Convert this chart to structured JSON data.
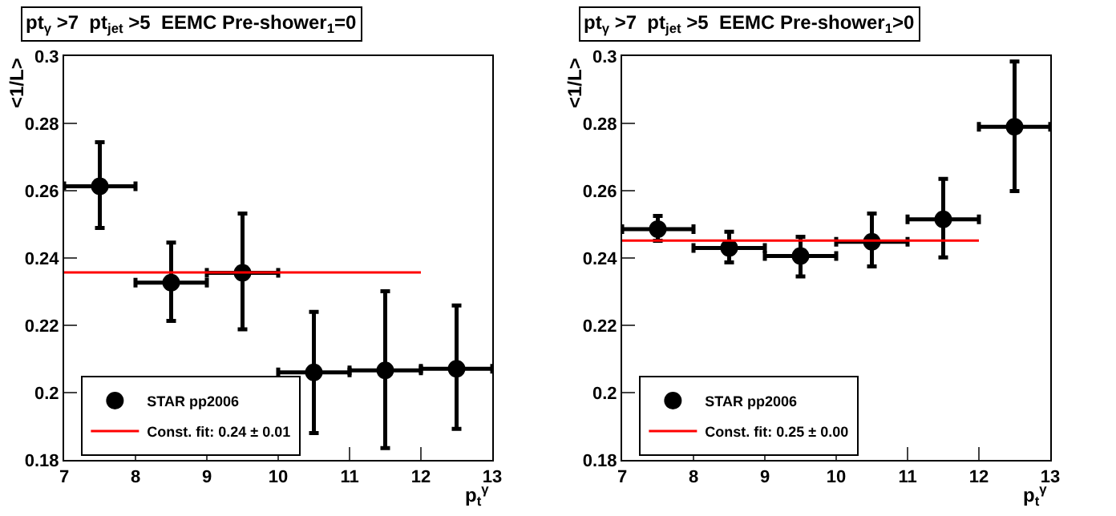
{
  "chart_data": [
    {
      "type": "scatter",
      "title": "pt$_{γ}$ >7  pt$_{jet}$ >5  EEMC Pre-shower$_{1}$=0",
      "xlabel": "p$_{t}$$^{γ}$",
      "ylabel": "<1/L>",
      "xlim": [
        7,
        13
      ],
      "xticks": [
        7,
        8,
        9,
        10,
        11,
        12,
        13
      ],
      "ylim": [
        0.18,
        0.3
      ],
      "yticks": [
        0.18,
        0.2,
        0.22,
        0.24,
        0.26,
        0.28,
        0.3
      ],
      "grid": false,
      "legend": "bottom left",
      "series": [
        {
          "name": "STAR pp2006",
          "type": "scatter",
          "marker": "circle",
          "color": "#000000",
          "x": [
            7.5,
            8.5,
            9.5,
            10.5,
            11.5,
            12.5
          ],
          "values": [
            0.2613,
            0.2327,
            0.2356,
            0.206,
            0.2066,
            0.2071
          ],
          "errors": [
            [
              0.2489,
              0.2744
            ],
            [
              0.2213,
              0.2446
            ],
            [
              0.2188,
              0.2532
            ],
            0.018,
            [
              0.1835,
              0.2301
            ],
            [
              0.1892,
              0.2259
            ]
          ],
          "xerrors": [
            0.5,
            0.5,
            0.5,
            0.5,
            0.5,
            0.5
          ]
        },
        {
          "name": "Const. fit: 0.24 ± 0.01",
          "type": "line",
          "color": "#ff0000",
          "line_style": "solid",
          "x": [
            7,
            12
          ],
          "values": [
            0.2357,
            0.2357
          ]
        }
      ]
    },
    {
      "type": "scatter",
      "title": "pt$_{γ}$ >7  pt$_{jet}$ >5  EEMC Pre-shower$_{1}$>0",
      "xlabel": "p$_{t}$$^{γ}$",
      "ylabel": "<1/L>",
      "xlim": [
        7,
        13
      ],
      "xticks": [
        7,
        8,
        9,
        10,
        11,
        12,
        13
      ],
      "ylim": [
        0.18,
        0.3
      ],
      "yticks": [
        0.18,
        0.2,
        0.22,
        0.24,
        0.26,
        0.28,
        0.3
      ],
      "grid": false,
      "legend": "bottom left",
      "series": [
        {
          "name": "STAR pp2006",
          "type": "scatter",
          "marker": "circle",
          "color": "#000000",
          "x": [
            7.5,
            8.5,
            9.5,
            10.5,
            11.5,
            12.5
          ],
          "values": [
            0.2486,
            0.243,
            0.2406,
            0.2448,
            0.2515,
            0.279
          ],
          "errors": [
            [
              0.2451,
              0.2525
            ],
            [
              0.2387,
              0.2478
            ],
            [
              0.2345,
              0.2463
            ],
            [
              0.2375,
              0.2532
            ],
            [
              0.2402,
              0.2635
            ],
            [
              0.2599,
              0.2984
            ]
          ],
          "xerrors": [
            0.5,
            0.5,
            0.5,
            0.5,
            0.5,
            0.5
          ]
        },
        {
          "name": "Const. fit: 0.25 ± 0.00",
          "type": "line",
          "color": "#ff0000",
          "line_style": "solid",
          "x": [
            7,
            12
          ],
          "values": [
            0.2452,
            0.2452
          ]
        }
      ]
    }
  ]
}
